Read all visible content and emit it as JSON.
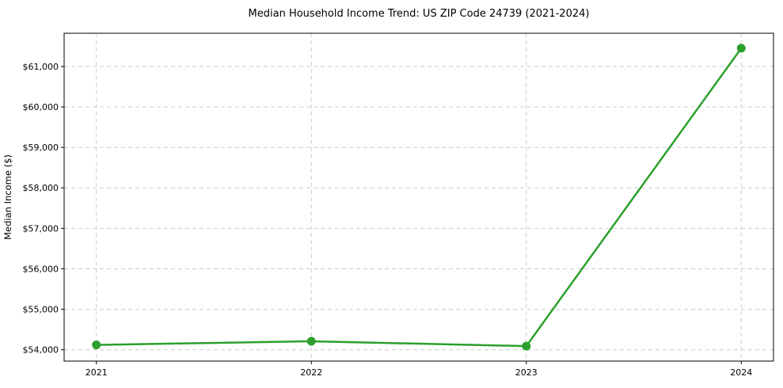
{
  "chart_data": {
    "type": "line",
    "title": "Median Household Income Trend: US ZIP Code 24739 (2021-2024)",
    "xlabel": "",
    "ylabel": "Median Income ($)",
    "x": [
      2021,
      2022,
      2023,
      2024
    ],
    "series": [
      {
        "name": "Median Income",
        "values": [
          54120,
          54210,
          54090,
          61450
        ],
        "color": "#2ca02c",
        "marker": "circle"
      }
    ],
    "xticks": {
      "values": [
        2021,
        2022,
        2023,
        2024
      ],
      "labels": [
        "2021",
        "2022",
        "2023",
        "2024"
      ]
    },
    "yticks": {
      "values": [
        54000,
        55000,
        56000,
        57000,
        58000,
        59000,
        60000,
        61000
      ],
      "labels": [
        "$54,000",
        "$55,000",
        "$56,000",
        "$57,000",
        "$58,000",
        "$59,000",
        "$60,000",
        "$61,000"
      ]
    },
    "xlim": [
      2020.85,
      2024.15
    ],
    "ylim": [
      53720,
      61820
    ],
    "grid": {
      "show": true,
      "color": "#cccccc",
      "dash": "5 4"
    },
    "legend_position": "none",
    "line_width": 2.5,
    "marker_size": 11,
    "tick_length": 4,
    "colors": {
      "line": "#2ca02c",
      "spine": "#000000",
      "text": "#000000",
      "grid": "#cccccc",
      "background": "#ffffff"
    }
  }
}
